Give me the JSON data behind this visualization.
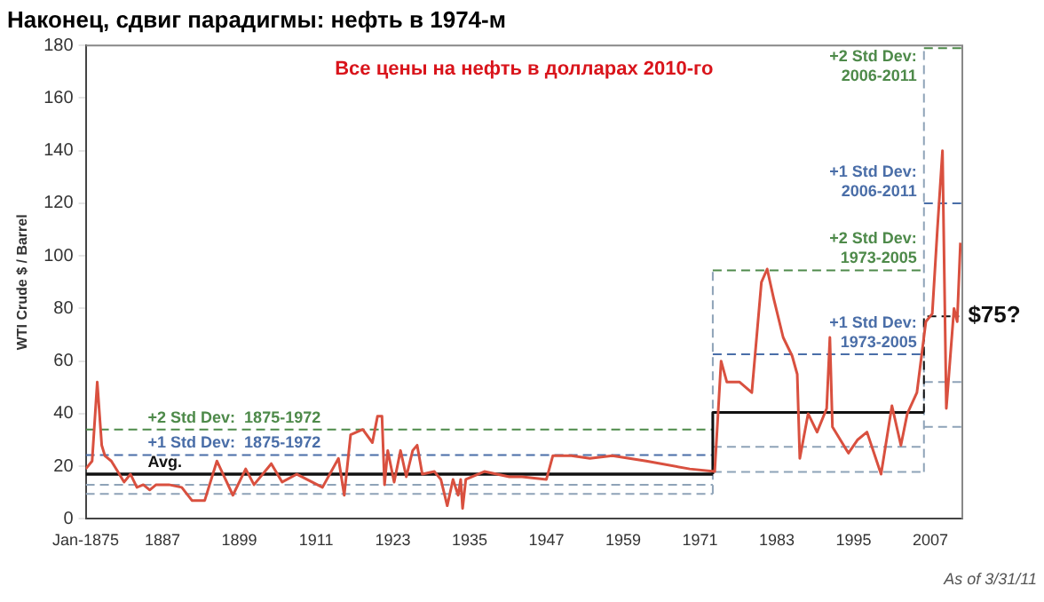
{
  "chart_data": {
    "type": "line",
    "title": "Наконец, сдвиг парадигмы: нефть в 1974-м",
    "subtitle": "Все цены на нефть в долларах 2010-го",
    "ylabel": "WTI Crude $ / Barrel",
    "annotations": [
      "As of 3/31/11"
    ],
    "xlim": [
      1875,
      2012
    ],
    "xticks": [
      {
        "value": 1875,
        "label": "Jan-1875"
      },
      1887,
      1899,
      1911,
      1923,
      1935,
      1947,
      1959,
      1971,
      1983,
      1995,
      2007
    ],
    "ylim": [
      0,
      180
    ],
    "yticks": [
      0,
      20,
      40,
      60,
      80,
      100,
      120,
      140,
      160,
      180
    ],
    "grid": false,
    "legend": false,
    "marker": "none",
    "series": [
      {
        "color": "#d9503f",
        "line_style": "solid",
        "x": [
          1875,
          1876,
          1876.8,
          1877.5,
          1878,
          1879,
          1880,
          1881,
          1882,
          1883,
          1884,
          1885,
          1886,
          1888,
          1890,
          1891.6,
          1893.6,
          1895.5,
          1898,
          1900,
          1901.3,
          1904,
          1905.7,
          1908,
          1912,
          1914.5,
          1915.4,
          1916.4,
          1918.3,
          1919.8,
          1920.6,
          1921.3,
          1921.7,
          1922.2,
          1923.2,
          1924.2,
          1925.1,
          1926.1,
          1926.8,
          1927.6,
          1929.5,
          1930.5,
          1931.5,
          1932.4,
          1933.2,
          1933.6,
          1933.9,
          1934.4,
          1937.3,
          1941.2,
          1943.2,
          1947,
          1948,
          1950.9,
          1953.8,
          1957.3,
          1962.6,
          1969.4,
          1973.3,
          1974.3,
          1975.2,
          1977.2,
          1979.1,
          1980.6,
          1981.5,
          1982.5,
          1984,
          1985.4,
          1986.2,
          1986.6,
          1987.9,
          1989.3,
          1990.8,
          1991.3,
          1991.7,
          1994.2,
          1995.6,
          1997.1,
          1999.3,
          2001,
          2002.4,
          2003.4,
          2004.9,
          2006.3,
          2007.3,
          2008.1,
          2008.9,
          2009.5,
          2010.7,
          2011.2,
          2011.7
        ],
        "values": [
          19,
          22,
          52,
          28,
          24,
          22,
          18,
          14,
          17,
          12,
          13,
          11,
          13,
          13,
          12,
          7,
          7,
          22,
          9,
          19,
          13,
          21,
          14,
          17,
          12,
          23,
          9,
          32,
          34,
          29,
          39,
          39,
          13,
          26,
          14,
          26,
          16,
          26,
          28,
          17,
          18,
          15,
          5,
          15,
          9,
          15,
          4,
          15,
          18,
          16,
          16,
          15,
          24,
          24,
          23,
          24,
          22,
          19,
          18,
          60,
          52,
          52,
          48,
          90,
          95,
          84,
          69,
          62,
          55,
          23,
          40,
          33,
          42,
          69,
          35,
          25,
          30,
          33,
          17,
          43,
          28,
          40,
          48,
          75,
          78,
          110,
          140,
          42,
          80,
          75,
          105
        ]
      },
      {
        "name": "Avg.",
        "color": "#111111",
        "line_style": "solid",
        "x": [
          1875,
          1973
        ],
        "values": [
          17,
          17
        ]
      },
      {
        "color": "#111111",
        "line_style": "solid",
        "x": [
          1973,
          1973,
          2006
        ],
        "values": [
          17,
          40.5,
          40.5
        ]
      },
      {
        "type": "line",
        "name": "$75?",
        "color": "#111111",
        "line_style": "dashed",
        "x": [
          2006,
          2006,
          2011.5
        ],
        "values": [
          40.5,
          77,
          77
        ]
      },
      {
        "type": "line",
        "name": "+2 Std Dev:  1875-1972",
        "color": "#4e8a4a",
        "line_style": "dashed",
        "x": [
          1875,
          1973
        ],
        "values": [
          34,
          34
        ]
      },
      {
        "type": "line",
        "name": "+1 Std Dev:  1875-1972",
        "color": "#4a6ea8",
        "line_style": "dashed",
        "x": [
          1875,
          1973
        ],
        "values": [
          24.3,
          24.3
        ]
      },
      {
        "type": "line",
        "color": "#8ea3b8",
        "line_style": "dashed",
        "x": [
          1875,
          1973
        ],
        "values": [
          13,
          13
        ]
      },
      {
        "type": "line",
        "color": "#8ea3b8",
        "line_style": "dashed",
        "x": [
          1875,
          1973
        ],
        "values": [
          9.5,
          9.5
        ]
      },
      {
        "type": "line",
        "color": "#8ea3b8",
        "line_style": "dashed",
        "x": [
          1973,
          1973
        ],
        "values": [
          9.5,
          94.5
        ]
      },
      {
        "type": "line",
        "name": "+2 Std Dev: 1973-2005",
        "color": "#4e8a4a",
        "line_style": "dashed",
        "x": [
          1973,
          2006
        ],
        "values": [
          94.5,
          94.5
        ]
      },
      {
        "type": "line",
        "name": "+1 Std Dev: 1973-2005",
        "color": "#4a6ea8",
        "line_style": "dashed",
        "x": [
          1973,
          2006
        ],
        "values": [
          62.6,
          62.6
        ]
      },
      {
        "type": "line",
        "color": "#8ea3b8",
        "line_style": "dashed",
        "x": [
          1973,
          2006
        ],
        "values": [
          27.4,
          27.4
        ]
      },
      {
        "type": "line",
        "color": "#8ea3b8",
        "line_style": "dashed",
        "x": [
          1973,
          2006
        ],
        "values": [
          17.9,
          17.9
        ]
      },
      {
        "type": "line",
        "color": "#8ea3b8",
        "line_style": "dashed",
        "x": [
          2006,
          2006
        ],
        "values": [
          17.9,
          179
        ]
      },
      {
        "type": "line",
        "name": "+2 Std Dev: 2006-2011",
        "color": "#4e8a4a",
        "line_style": "dashed",
        "x": [
          2006,
          2012
        ],
        "values": [
          179,
          179
        ]
      },
      {
        "type": "line",
        "name": "+1 Std Dev: 2006-2011",
        "color": "#4a6ea8",
        "line_style": "dashed",
        "x": [
          2006,
          2012
        ],
        "values": [
          120,
          120
        ]
      },
      {
        "type": "line",
        "color": "#8ea3b8",
        "line_style": "dashed",
        "x": [
          2006,
          2012
        ],
        "values": [
          52,
          52
        ]
      },
      {
        "type": "line",
        "color": "#8ea3b8",
        "line_style": "dashed",
        "x": [
          2006,
          2012
        ],
        "values": [
          35,
          35
        ]
      }
    ]
  }
}
